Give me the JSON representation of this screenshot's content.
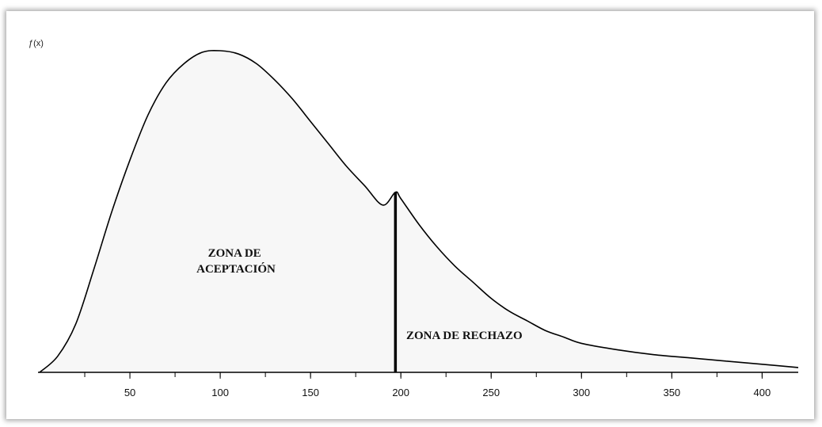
{
  "chart_data": {
    "type": "area",
    "title": "",
    "ylabel": "",
    "xlim": [
      0,
      420
    ],
    "x_ticks": [
      50,
      100,
      150,
      200,
      250,
      300,
      350,
      400
    ],
    "x_minor_step": 25,
    "curve": {
      "x": [
        0,
        10,
        20,
        30,
        40,
        50,
        60,
        70,
        80,
        90,
        100,
        110,
        120,
        130,
        140,
        150,
        160,
        170,
        180,
        190,
        197,
        200,
        210,
        220,
        230,
        240,
        250,
        260,
        270,
        280,
        290,
        300,
        320,
        340,
        360,
        380,
        400,
        420
      ],
      "y": [
        0,
        0.05,
        0.15,
        0.32,
        0.5,
        0.66,
        0.8,
        0.9,
        0.96,
        0.995,
        1.0,
        0.99,
        0.96,
        0.91,
        0.85,
        0.78,
        0.71,
        0.64,
        0.58,
        0.52,
        0.56,
        0.54,
        0.46,
        0.39,
        0.33,
        0.28,
        0.23,
        0.19,
        0.16,
        0.13,
        0.11,
        0.09,
        0.07,
        0.055,
        0.045,
        0.035,
        0.025,
        0.015
      ],
      "fill_color": "#f7f7f7",
      "line_color": "#000000"
    },
    "critical_value": 197,
    "critical_line_color": "#000000",
    "annotations": [
      {
        "id": "accept",
        "lines": [
          "ZONA DE",
          "ACEPTACIÓN"
        ]
      },
      {
        "id": "reject",
        "lines": [
          "ZONA DE RECHAZO"
        ]
      }
    ]
  }
}
